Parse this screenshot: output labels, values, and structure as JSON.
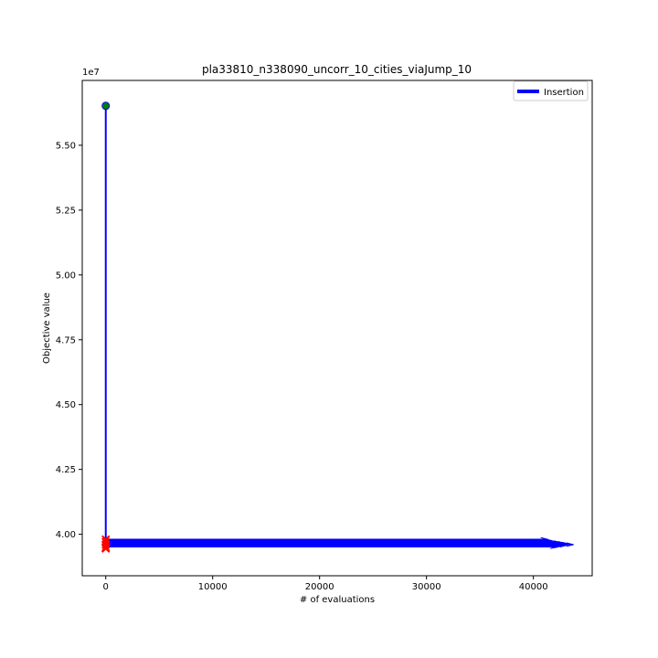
{
  "chart_data": {
    "type": "line",
    "title": "pla33810_n338090_uncorr_10_cities_viaJump_10",
    "xlabel": "# of evaluations",
    "ylabel": "Objective value",
    "y_offset_label": "1e7",
    "xlim": [
      -2200,
      45500
    ],
    "ylim": [
      38400000,
      57500000
    ],
    "x_ticks": [
      0,
      10000,
      20000,
      30000,
      40000
    ],
    "x_tick_labels": [
      "0",
      "10000",
      "20000",
      "30000",
      "40000"
    ],
    "y_ticks": [
      40000000,
      42500000,
      45000000,
      47500000,
      50000000,
      52500000,
      55000000
    ],
    "y_tick_labels": [
      "4.00",
      "4.25",
      "4.50",
      "4.75",
      "5.00",
      "5.25",
      "5.50"
    ],
    "grid": false,
    "legend_position": "top-right",
    "series": [
      {
        "name": "Insertion",
        "color": "#0000ff",
        "start_point": {
          "x": 0,
          "y": 56520000
        },
        "drop": {
          "x": 0,
          "y_from": 56520000,
          "y_to": 39700000
        },
        "run_ends": [
          41200,
          41600,
          42000,
          42400,
          42800,
          43200,
          43600,
          43000,
          42500,
          42100
        ],
        "run_y": [
          39800000,
          39750000,
          39700000,
          39680000,
          39650000,
          39620000,
          39600000,
          39580000,
          39550000,
          39520000
        ],
        "end_markers_y": [
          39800000,
          39700000,
          39600000,
          39500000,
          39450000
        ]
      }
    ],
    "start_marker_color": "#008000",
    "end_marker_color": "#ff0000"
  }
}
